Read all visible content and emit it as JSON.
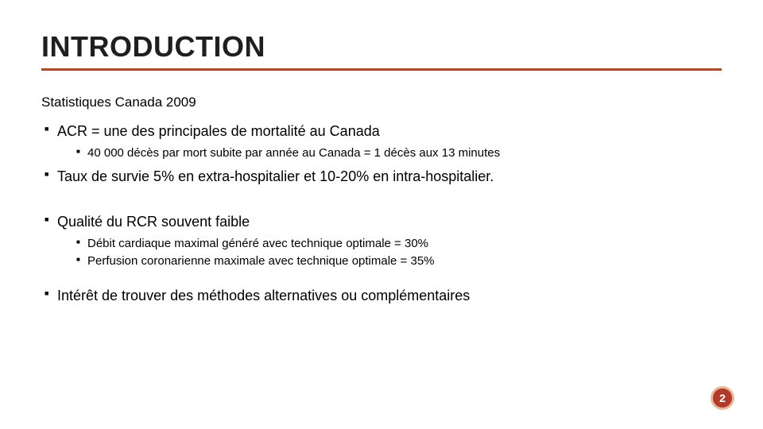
{
  "title": {
    "text": "INTRODUCTION",
    "color": "#1f1f1f",
    "underline_color": "#a84c2b",
    "fontsize": 36
  },
  "subtitle": {
    "text": "Statistiques Canada 2009",
    "fontsize": 17,
    "color": "#000000"
  },
  "body_fontsize_l1": 18,
  "body_fontsize_l2": 15,
  "bullets": {
    "b1": "ACR = une des principales de mortalité au Canada",
    "b1_1": "40 000 décès par mort subite par année au Canada = 1 décès aux 13 minutes",
    "b2": "Taux de survie 5% en extra-hospitalier et 10-20% en intra-hospitalier.",
    "b3": "Qualité du RCR souvent faible",
    "b3_1": "Débit cardiaque maximal généré avec technique optimale = 30%",
    "b3_2": "Perfusion coronarienne maximale avec technique optimale = 35%",
    "b4": "Intérêt de trouver des méthodes alternatives ou complémentaires"
  },
  "page_number": {
    "value": "2",
    "bg_color": "#b13a2a",
    "border_color": "#e8b89a",
    "text_color": "#ffffff",
    "fontsize": 14
  },
  "background_color": "#ffffff"
}
